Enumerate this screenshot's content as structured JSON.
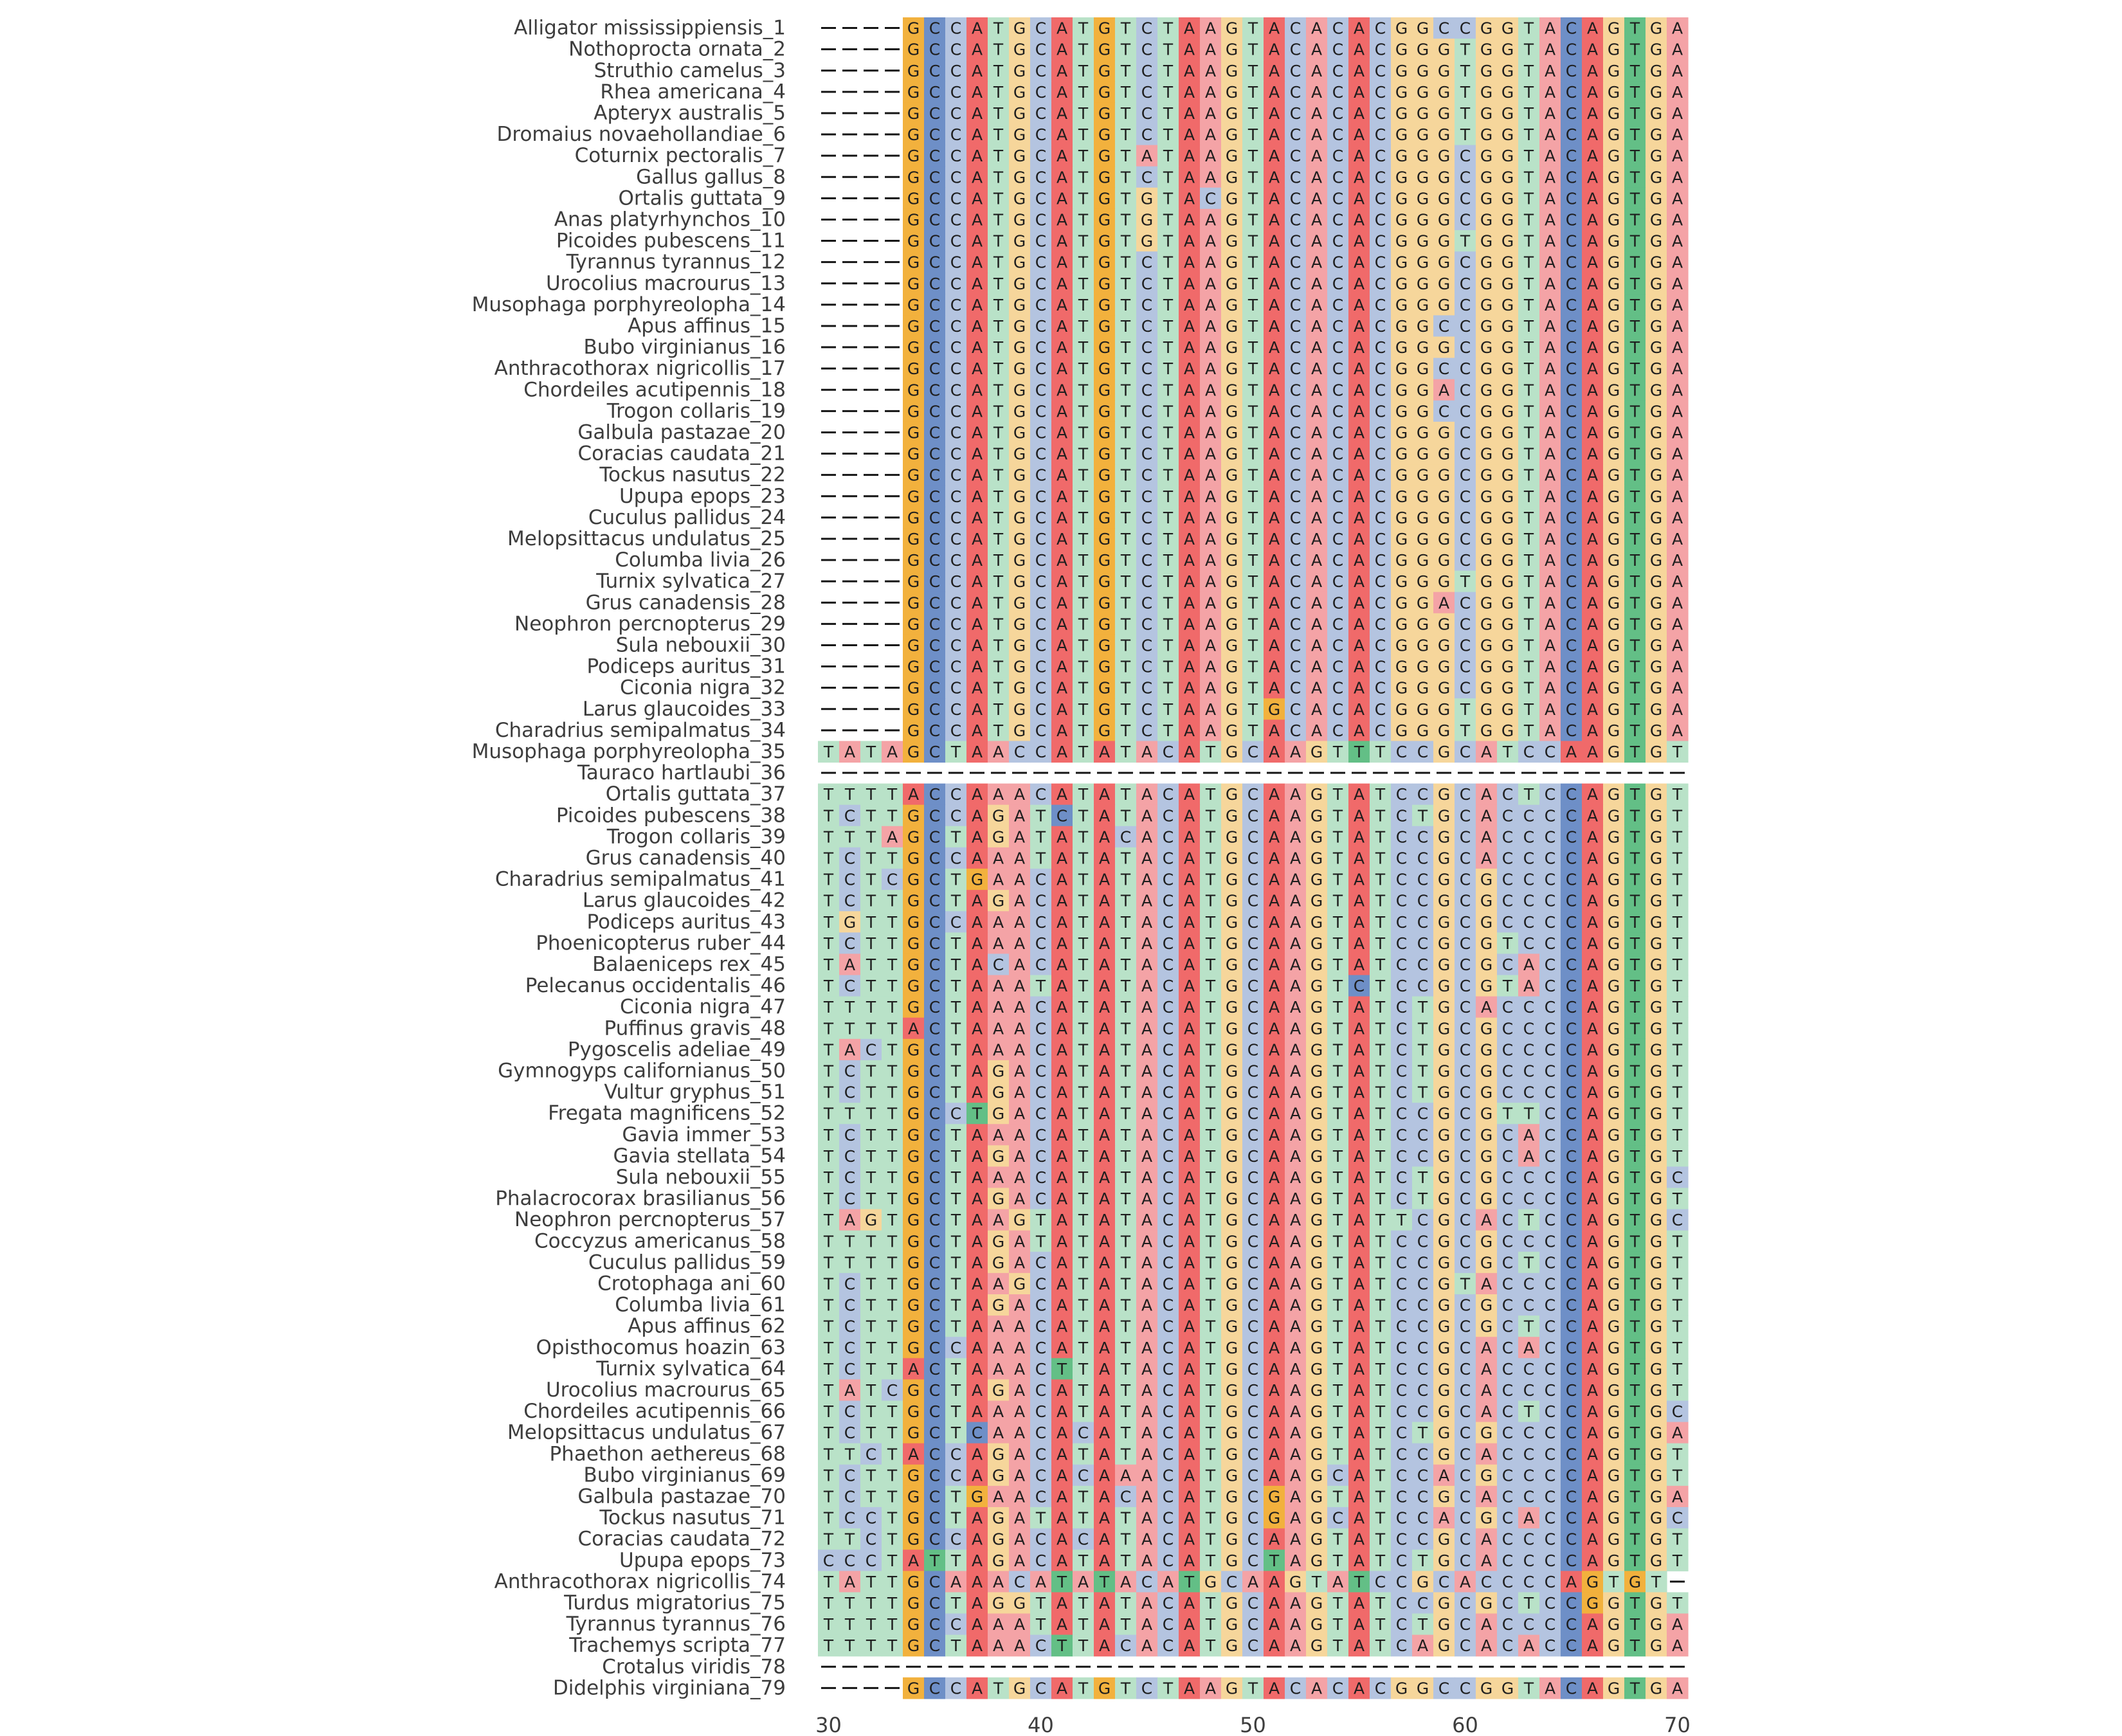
{
  "chart_data": {
    "type": "heatmap",
    "subtype": "multiple-sequence-alignment",
    "x_start": 30,
    "x_end": 70,
    "x_ticks": [
      "30",
      "40",
      "50",
      "60",
      "70"
    ],
    "colors": {
      "A": "#f4a3a6",
      "C": "#b4c4e0",
      "G": "#f6d69b",
      "T": "#b9e2c8"
    },
    "conserved_colors": {
      "A": "#f06a6a",
      "C": "#6e8fc7",
      "G": "#f2b13d",
      "T": "#63bf86"
    },
    "conserved_columns": [
      34,
      35,
      37,
      41,
      43,
      47,
      51,
      55,
      65,
      66,
      68
    ],
    "gap_color": "#141414",
    "sequences": [
      {
        "label": "Alligator mississippiensis_1",
        "seq": "----GCCATGCATGTCTAAGTACACACGGCCGGTACAGTGA"
      },
      {
        "label": "Nothoprocta ornata_2",
        "seq": "----GCCATGCATGTCTAAGTACACACGGGTGGTACAGTGA"
      },
      {
        "label": "Struthio camelus_3",
        "seq": "----GCCATGCATGTCTAAGTACACACGGGTGGTACAGTGA"
      },
      {
        "label": "Rhea americana_4",
        "seq": "----GCCATGCATGTCTAAGTACACACGGGTGGTACAGTGA"
      },
      {
        "label": "Apteryx australis_5",
        "seq": "----GCCATGCATGTCTAAGTACACACGGGTGGTACAGTGA"
      },
      {
        "label": "Dromaius novaehollandiae_6",
        "seq": "----GCCATGCATGTCTAAGTACACACGGGTGGTACAGTGA"
      },
      {
        "label": "Coturnix pectoralis_7",
        "seq": "----GCCATGCATGTATAAGTACACACGGGCGGTACAGTGA"
      },
      {
        "label": "Gallus gallus_8",
        "seq": "----GCCATGCATGTCTAAGTACACACGGGCGGTACAGTGA"
      },
      {
        "label": "Ortalis guttata_9",
        "seq": "----GCCATGCATGTGTACGTACACACGGGCGGTACAGTGA"
      },
      {
        "label": "Anas platyrhynchos_10",
        "seq": "----GCCATGCATGTGTAAGTACACACGGGCGGTACAGTGA"
      },
      {
        "label": "Picoides pubescens_11",
        "seq": "----GCCATGCATGTGTAAGTACACACGGGTGGTACAGTGA"
      },
      {
        "label": "Tyrannus tyrannus_12",
        "seq": "----GCCATGCATGTCTAAGTACACACGGGCGGTACAGTGA"
      },
      {
        "label": "Urocolius macrourus_13",
        "seq": "----GCCATGCATGTCTAAGTACACACGGGCGGTACAGTGA"
      },
      {
        "label": "Musophaga porphyreolopha_14",
        "seq": "----GCCATGCATGTCTAAGTACACACGGGCGGTACAGTGA"
      },
      {
        "label": "Apus affinus_15",
        "seq": "----GCCATGCATGTCTAAGTACACACGGCCGGTACAGTGA"
      },
      {
        "label": "Bubo virginianus_16",
        "seq": "----GCCATGCATGTCTAAGTACACACGGGCGGTACAGTGA"
      },
      {
        "label": "Anthracothorax nigricollis_17",
        "seq": "----GCCATGCATGTCTAAGTACACACGGCCGGTACAGTGA"
      },
      {
        "label": "Chordeiles acutipennis_18",
        "seq": "----GCCATGCATGTCTAAGTACACACGGACGGTACAGTGA"
      },
      {
        "label": "Trogon collaris_19",
        "seq": "----GCCATGCATGTCTAAGTACACACGGCCGGTACAGTGA"
      },
      {
        "label": "Galbula pastazae_20",
        "seq": "----GCCATGCATGTCTAAGTACACACGGGCGGTACAGTGA"
      },
      {
        "label": "Coracias caudata_21",
        "seq": "----GCCATGCATGTCTAAGTACACACGGGCGGTACAGTGA"
      },
      {
        "label": "Tockus nasutus_22",
        "seq": "----GCCATGCATGTCTAAGTACACACGGGCGGTACAGTGA"
      },
      {
        "label": "Upupa epops_23",
        "seq": "----GCCATGCATGTCTAAGTACACACGGGCGGTACAGTGA"
      },
      {
        "label": "Cuculus pallidus_24",
        "seq": "----GCCATGCATGTCTAAGTACACACGGGCGGTACAGTGA"
      },
      {
        "label": "Melopsittacus undulatus_25",
        "seq": "----GCCATGCATGTCTAAGTACACACGGGCGGTACAGTGA"
      },
      {
        "label": "Columba livia_26",
        "seq": "----GCCATGCATGTCTAAGTACACACGGGCGGTACAGTGA"
      },
      {
        "label": "Turnix sylvatica_27",
        "seq": "----GCCATGCATGTCTAAGTACACACGGGTGGTACAGTGA"
      },
      {
        "label": "Grus canadensis_28",
        "seq": "----GCCATGCATGTCTAAGTACACACGGACGGTACAGTGA"
      },
      {
        "label": "Neophron percnopterus_29",
        "seq": "----GCCATGCATGTCTAAGTACACACGGGCGGTACAGTGA"
      },
      {
        "label": "Sula nebouxii_30",
        "seq": "----GCCATGCATGTCTAAGTACACACGGGCGGTACAGTGA"
      },
      {
        "label": "Podiceps auritus_31",
        "seq": "----GCCATGCATGTCTAAGTACACACGGGCGGTACAGTGA"
      },
      {
        "label": "Ciconia nigra_32",
        "seq": "----GCCATGCATGTCTAAGTACACACGGGCGGTACAGTGA"
      },
      {
        "label": "Larus glaucoides_33",
        "seq": "----GCCATGCATGTCTAAGTGCACACGGGTGGTACAGTGA"
      },
      {
        "label": "Charadrius semipalmatus_34",
        "seq": "----GCCATGCATGTCTAAGTACACACGGGTGGTACAGTGA"
      },
      {
        "label": "Musophaga porphyreolopha_35",
        "seq": "TATAGCTAACCATATACATGCAAGTTTCCGCATCCAAGTGT"
      },
      {
        "label": "Tauraco hartlaubi_36",
        "seq": "-----------------------------------------"
      },
      {
        "label": "Ortalis guttata_37",
        "seq": "TTTTACCAAACATATACATGCAAGTATCCGCACTCCAGTGT"
      },
      {
        "label": "Picoides pubescens_38",
        "seq": "TCTTGCCAGATCTATACATGCAAGTATCTGCACCCCAGTGT"
      },
      {
        "label": "Trogon collaris_39",
        "seq": "TTTAGCTAGATATACACATGCAAGTATCCGCACCCCAGTGT"
      },
      {
        "label": "Grus canadensis_40",
        "seq": "TCTTGCCAAATATATACATGCAAGTATCCGCACCCCAGTGT"
      },
      {
        "label": "Charadrius semipalmatus_41",
        "seq": "TCTCGCTGAACATATACATGCAAGTATCCGCGCCCCAGTGT"
      },
      {
        "label": "Larus glaucoides_42",
        "seq": "TCTTGCTAGACATATACATGCAAGTATCCGCGCCCCAGTGT"
      },
      {
        "label": "Podiceps auritus_43",
        "seq": "TGTTGCCAAACATATACATGCAAGTATCCGCGCCCCAGTGT"
      },
      {
        "label": "Phoenicopterus ruber_44",
        "seq": "TCTTGCTAAACATATACATGCAAGTATCCGCGTCCCAGTGT"
      },
      {
        "label": "Balaeniceps rex_45",
        "seq": "TATTGCTACACATATACATGCAAGTATCCGCGCACCAGTGT"
      },
      {
        "label": "Pelecanus occidentalis_46",
        "seq": "TCTTGCTAAATATATACATGCAAGTCTCCGCGTACCAGTGT"
      },
      {
        "label": "Ciconia nigra_47",
        "seq": "TTTTGCTAAACATATACATGCAAGTATCTGCACCCCAGTGT"
      },
      {
        "label": "Puffinus gravis_48",
        "seq": "TTTTACTAAACATATACATGCAAGTATCTGCGCCCCAGTGT"
      },
      {
        "label": "Pygoscelis adeliae_49",
        "seq": "TACTGCTAAACATATACATGCAAGTATCTGCGCCCCAGTGT"
      },
      {
        "label": "Gymnogyps californianus_50",
        "seq": "TCTTGCTAGACATATACATGCAAGTATCTGCGCCCCAGTGT"
      },
      {
        "label": "Vultur gryphus_51",
        "seq": "TCTTGCTAGACATATACATGCAAGTATCTGCGCCCCAGTGT"
      },
      {
        "label": "Fregata magnificens_52",
        "seq": "TTTTGCCTGACATATACATGCAAGTATCCGCGTTCCAGTGT"
      },
      {
        "label": "Gavia immer_53",
        "seq": "TCTTGCTAAACATATACATGCAAGTATCCGCGCACCAGTGT"
      },
      {
        "label": "Gavia stellata_54",
        "seq": "TCTTGCTAGACATATACATGCAAGTATCCGCGCACCAGTGT"
      },
      {
        "label": "Sula nebouxii_55",
        "seq": "TCTTGCTAAACATATACATGCAAGTATCTGCGCCCCAGTGC"
      },
      {
        "label": "Phalacrocorax brasilianus_56",
        "seq": "TCTTGCTAGACATATACATGCAAGTATCTGCGCCCCAGTGT"
      },
      {
        "label": "Neophron percnopterus_57",
        "seq": "TAGTGCTAAGTATATACATGCAAGTATTCGCACTCCAGTGC"
      },
      {
        "label": "Coccyzus americanus_58",
        "seq": "TTTTGCTAGATATATACATGCAAGTATCCGCGCCCCAGTGT"
      },
      {
        "label": "Cuculus pallidus_59",
        "seq": "TTTTGCTAGACATATACATGCAAGTATCCGCGCTCCAGTGT"
      },
      {
        "label": "Crotophaga ani_60",
        "seq": "TCTTGCTAAGCATATACATGCAAGTATCCGTACCCCAGTGT"
      },
      {
        "label": "Columba livia_61",
        "seq": "TCTTGCTAGACATATACATGCAAGTATCCGCGCCCCAGTGT"
      },
      {
        "label": "Apus affinus_62",
        "seq": "TCTTGCTAAACATATACATGCAAGTATCCGCGCTCCAGTGT"
      },
      {
        "label": "Opisthocomus hoazin_63",
        "seq": "TCTTGCCAAACATATACATGCAAGTATCCGCACACCAGTGT"
      },
      {
        "label": "Turnix sylvatica_64",
        "seq": "TCTTACTAAACTTATACATGCAAGTATCCGCACCCCAGTGT"
      },
      {
        "label": "Urocolius macrourus_65",
        "seq": "TATCGCTAGACATATACATGCAAGTATCCGCACCCCAGTGT"
      },
      {
        "label": "Chordeiles acutipennis_66",
        "seq": "TCTTGCTAAACATATACATGCAAGTATCCGCACTCCAGTGC"
      },
      {
        "label": "Melopsittacus undulatus_67",
        "seq": "TCTTGCTCAACACATACATGCAAGTATCTGCGCCCCAGTGA"
      },
      {
        "label": "Phaethon aethereus_68",
        "seq": "TTCTACCAGACATATACATGCAAGTATCCGCACCCCAGTGT"
      },
      {
        "label": "Bubo virginianus_69",
        "seq": "TCTTGCCAGACACAAACATGCAAGCATCCACGCCCCAGTGT"
      },
      {
        "label": "Galbula pastazae_70",
        "seq": "TCTTGCTGAACATACACATGCGAGTATCCGCACCCCAGTGA"
      },
      {
        "label": "Tockus nasutus_71",
        "seq": "TCCTGCTAGATATATACATGCGAGCATCCACGCACCAGTGC"
      },
      {
        "label": "Coracias caudata_72",
        "seq": "TTCTGCCAGACACATACATGCAAGTATCCGCACCCCAGTGT"
      },
      {
        "label": "Upupa epops_73",
        "seq": "CCCTATTAGACATATACATGCTAGTATCTGCACCCCAGTGT"
      },
      {
        "label": "Anthracothorax nigricollis_74",
        "seq": "TATTGCAAACATATACATGCAAGTATCCGCACCCCAGTGT-"
      },
      {
        "label": "Turdus migratorius_75",
        "seq": "TTTTGCTAGGTATATACATGCAAGTATCCGCGCTCCGGTGT"
      },
      {
        "label": "Tyrannus tyrannus_76",
        "seq": "TTTTGCCAAATATATACATGCAAGTATCTGCACCCCAGTGA"
      },
      {
        "label": "Trachemys scripta_77",
        "seq": "TTTTGCTAAACTTACACATGCAAGTATCAGCACACCAGTGA"
      },
      {
        "label": "Crotalus viridis_78",
        "seq": "-----------------------------------------"
      },
      {
        "label": "Didelphis virginiana_79",
        "seq": "----GCCATGCATGTCTAAGTACACACGGCCGGTACAGTGA"
      }
    ]
  }
}
